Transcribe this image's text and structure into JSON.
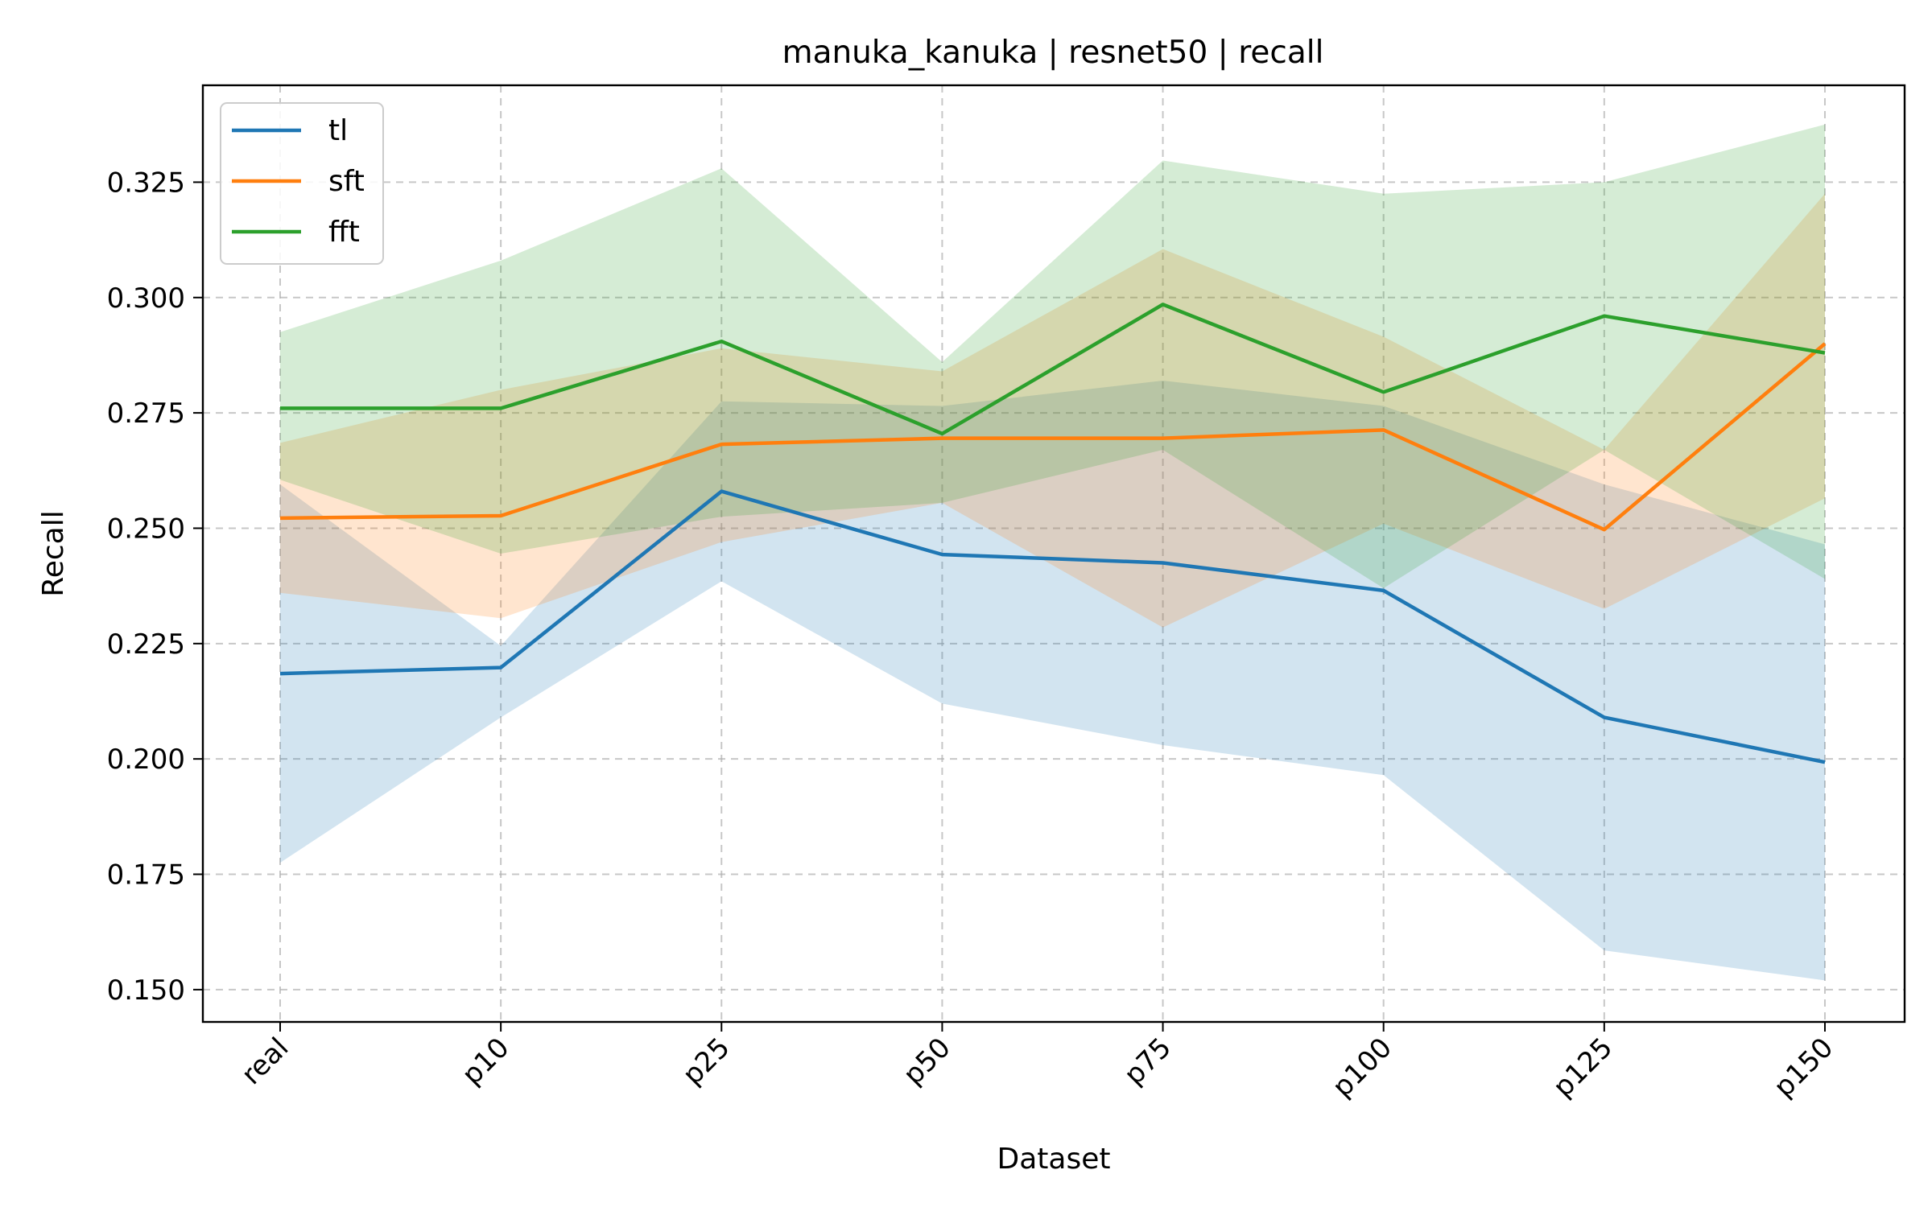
{
  "chart_data": {
    "type": "line",
    "title": "manuka_kanuka | resnet50 | recall",
    "xlabel": "Dataset",
    "ylabel": "Recall",
    "categories": [
      "real",
      "p10",
      "p25",
      "p50",
      "p75",
      "p100",
      "p125",
      "p150"
    ],
    "ylim": [
      0.143,
      0.346
    ],
    "yticks": [
      0.15,
      0.175,
      0.2,
      0.225,
      0.25,
      0.275,
      0.3,
      0.325
    ],
    "ytick_labels": [
      "0.150",
      "0.175",
      "0.200",
      "0.225",
      "0.250",
      "0.275",
      "0.300",
      "0.325"
    ],
    "grid": true,
    "legend_position": "top-left",
    "series": [
      {
        "name": "tl",
        "color": "#1f77b4",
        "values": [
          0.2185,
          0.2198,
          0.258,
          0.2443,
          0.2425,
          0.2365,
          0.209,
          0.1993
        ],
        "lower": [
          0.1775,
          0.209,
          0.2385,
          0.212,
          0.203,
          0.1965,
          0.1585,
          0.152
        ],
        "upper": [
          0.2595,
          0.2245,
          0.2775,
          0.2765,
          0.282,
          0.2765,
          0.2595,
          0.2465
        ]
      },
      {
        "name": "sft",
        "color": "#ff7f0e",
        "values": [
          0.2522,
          0.2527,
          0.2682,
          0.2695,
          0.2695,
          0.2713,
          0.2497,
          0.29
        ],
        "lower": [
          0.236,
          0.2305,
          0.247,
          0.2555,
          0.2285,
          0.251,
          0.2325,
          0.2565
        ],
        "upper": [
          0.2685,
          0.28,
          0.289,
          0.284,
          0.3105,
          0.2915,
          0.267,
          0.3225
        ]
      },
      {
        "name": "fft",
        "color": "#2ca02c",
        "values": [
          0.276,
          0.276,
          0.2905,
          0.2705,
          0.2985,
          0.2795,
          0.296,
          0.288
        ],
        "lower": [
          0.2605,
          0.2445,
          0.2525,
          0.2555,
          0.267,
          0.237,
          0.267,
          0.239
        ],
        "upper": [
          0.2925,
          0.308,
          0.328,
          0.286,
          0.3297,
          0.3225,
          0.325,
          0.3375
        ]
      }
    ]
  }
}
